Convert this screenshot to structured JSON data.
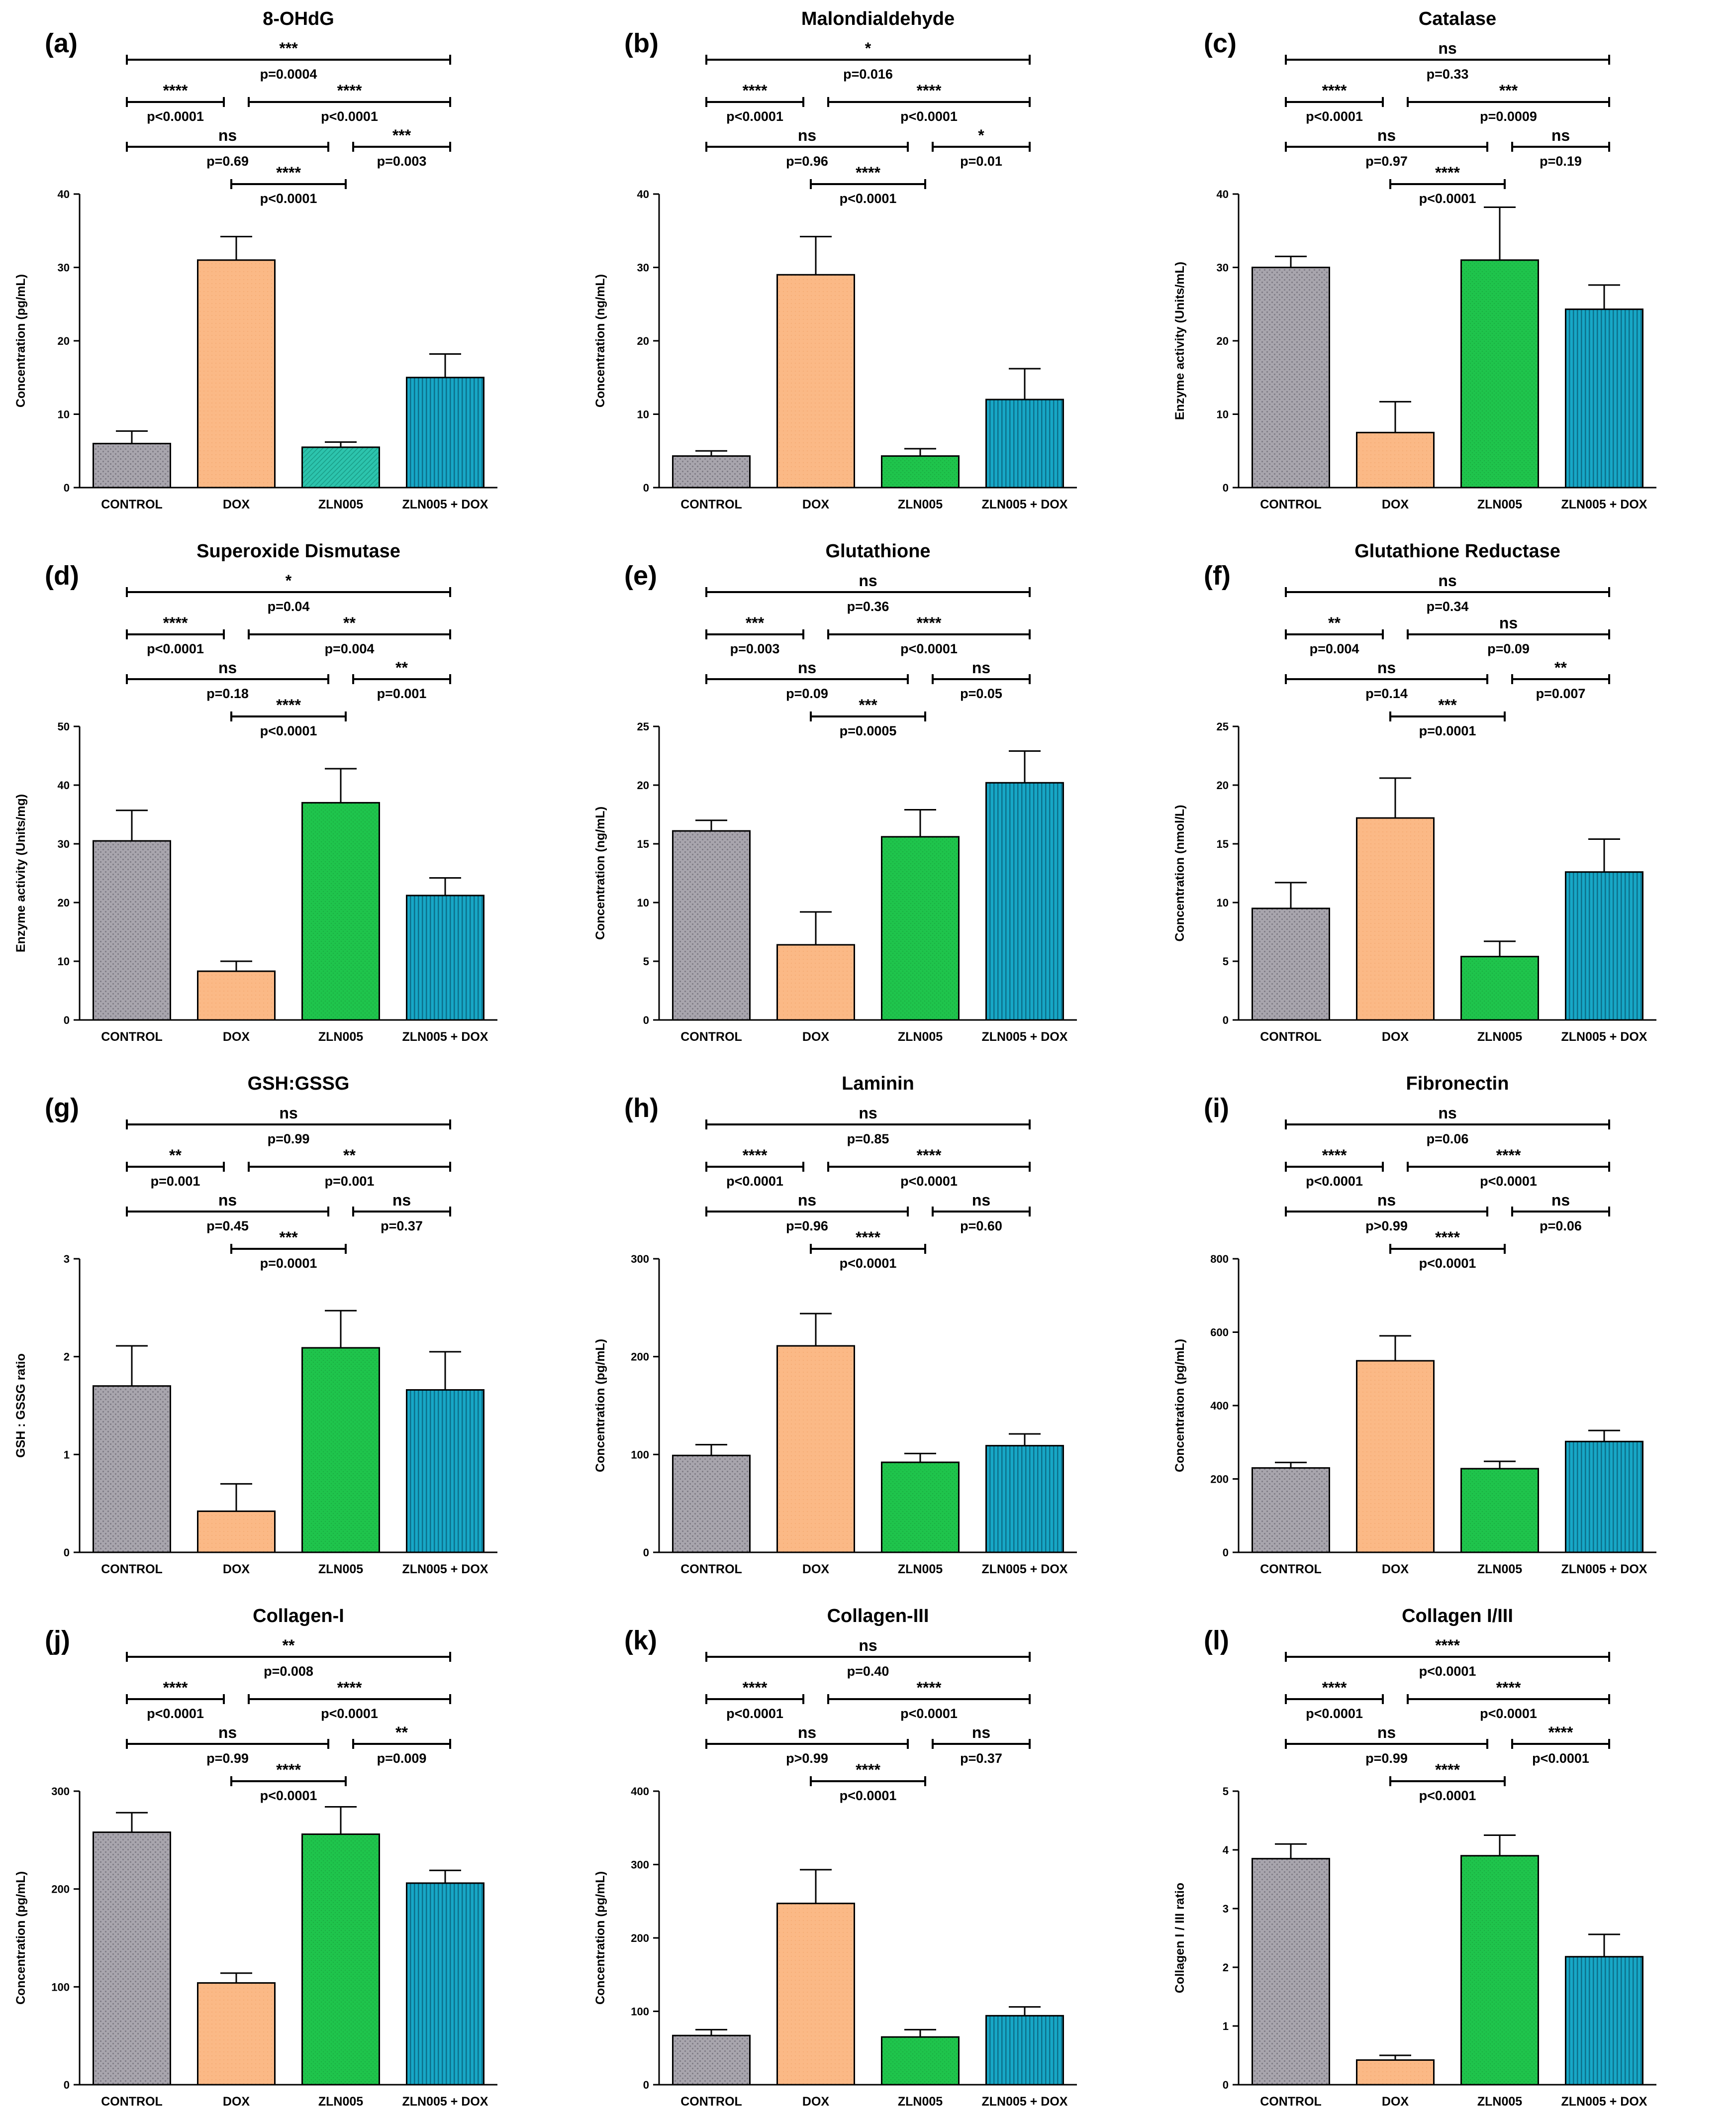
{
  "categories": [
    "CONTROL",
    "DOX",
    "ZLN005",
    "ZLN005 + DOX"
  ],
  "colors": {
    "control": "#a19ea6",
    "dox": "#fbb986",
    "zln": "#1fc44c",
    "combo": "#14a5c4",
    "zln_alt": "#25c4a8"
  },
  "chart_data": [
    {
      "label": "(a)",
      "type": "bar",
      "title": "8-OHdG",
      "ylabel": "Concentration (pg/mL)",
      "ylim": [
        0,
        40
      ],
      "yticks": [
        0,
        10,
        20,
        30,
        40
      ],
      "categories": [
        "CONTROL",
        "DOX",
        "ZLN005",
        "ZLN005 + DOX"
      ],
      "values": [
        6,
        31,
        5.5,
        15
      ],
      "errors": [
        1.7,
        3.2,
        0.7,
        3.2
      ],
      "comparisons": [
        {
          "a": 0,
          "b": 3,
          "stars": "***",
          "p": "p=0.0004"
        },
        {
          "a": 0,
          "b": 1,
          "stars": "****",
          "p": "p<0.0001"
        },
        {
          "a": 1,
          "b": 3,
          "stars": "****",
          "p": "p<0.0001"
        },
        {
          "a": 0,
          "b": 2,
          "stars": "ns",
          "p": "p=0.69"
        },
        {
          "a": 2,
          "b": 3,
          "stars": "***",
          "p": "p=0.003"
        },
        {
          "a": 1,
          "b": 2,
          "stars": "****",
          "p": "p<0.0001"
        }
      ]
    },
    {
      "label": "(b)",
      "type": "bar",
      "title": "Malondialdehyde",
      "ylabel": "Concentration (ng/mL)",
      "ylim": [
        0,
        40
      ],
      "yticks": [
        0,
        10,
        20,
        30,
        40
      ],
      "categories": [
        "CONTROL",
        "DOX",
        "ZLN005",
        "ZLN005 + DOX"
      ],
      "values": [
        4.3,
        29,
        4.3,
        12
      ],
      "errors": [
        0.7,
        5.2,
        1.0,
        4.2
      ],
      "comparisons": [
        {
          "a": 0,
          "b": 3,
          "stars": "*",
          "p": "p=0.016"
        },
        {
          "a": 0,
          "b": 1,
          "stars": "****",
          "p": "p<0.0001"
        },
        {
          "a": 1,
          "b": 3,
          "stars": "****",
          "p": "p<0.0001"
        },
        {
          "a": 0,
          "b": 2,
          "stars": "ns",
          "p": "p=0.96"
        },
        {
          "a": 2,
          "b": 3,
          "stars": "*",
          "p": "p=0.01"
        },
        {
          "a": 1,
          "b": 2,
          "stars": "****",
          "p": "p<0.0001"
        }
      ]
    },
    {
      "label": "(c)",
      "type": "bar",
      "title": "Catalase",
      "ylabel": "Enzyme activity (Units/mL)",
      "ylim": [
        0,
        40
      ],
      "yticks": [
        0,
        10,
        20,
        30,
        40
      ],
      "categories": [
        "CONTROL",
        "DOX",
        "ZLN005",
        "ZLN005 + DOX"
      ],
      "values": [
        30,
        7.5,
        31,
        24.3
      ],
      "errors": [
        1.5,
        4.2,
        7.2,
        3.3
      ],
      "comparisons": [
        {
          "a": 0,
          "b": 3,
          "stars": "ns",
          "p": "p=0.33"
        },
        {
          "a": 0,
          "b": 1,
          "stars": "****",
          "p": "p<0.0001"
        },
        {
          "a": 1,
          "b": 3,
          "stars": "***",
          "p": "p=0.0009"
        },
        {
          "a": 0,
          "b": 2,
          "stars": "ns",
          "p": "p=0.97"
        },
        {
          "a": 2,
          "b": 3,
          "stars": "ns",
          "p": "p=0.19"
        },
        {
          "a": 1,
          "b": 2,
          "stars": "****",
          "p": "p<0.0001"
        }
      ]
    },
    {
      "label": "(d)",
      "type": "bar",
      "title": "Superoxide Dismutase",
      "ylabel": "Enzyme activity (Units/mg)",
      "ylim": [
        0,
        50
      ],
      "yticks": [
        0,
        10,
        20,
        30,
        40,
        50
      ],
      "categories": [
        "CONTROL",
        "DOX",
        "ZLN005",
        "ZLN005 + DOX"
      ],
      "values": [
        30.5,
        8.3,
        37,
        21.2
      ],
      "errors": [
        5.2,
        1.7,
        5.8,
        3.0
      ],
      "comparisons": [
        {
          "a": 0,
          "b": 3,
          "stars": "*",
          "p": "p=0.04"
        },
        {
          "a": 0,
          "b": 1,
          "stars": "****",
          "p": "p<0.0001"
        },
        {
          "a": 1,
          "b": 3,
          "stars": "**",
          "p": "p=0.004"
        },
        {
          "a": 0,
          "b": 2,
          "stars": "ns",
          "p": "p=0.18"
        },
        {
          "a": 2,
          "b": 3,
          "stars": "**",
          "p": "p=0.001"
        },
        {
          "a": 1,
          "b": 2,
          "stars": "****",
          "p": "p<0.0001"
        }
      ]
    },
    {
      "label": "(e)",
      "type": "bar",
      "title": "Glutathione",
      "ylabel": "Concentration (ng/mL)",
      "ylim": [
        0,
        25
      ],
      "yticks": [
        0,
        5,
        10,
        15,
        20,
        25
      ],
      "categories": [
        "CONTROL",
        "DOX",
        "ZLN005",
        "ZLN005 + DOX"
      ],
      "values": [
        16.1,
        6.4,
        15.6,
        20.2
      ],
      "errors": [
        0.9,
        2.8,
        2.3,
        2.7
      ],
      "comparisons": [
        {
          "a": 0,
          "b": 3,
          "stars": "ns",
          "p": "p=0.36"
        },
        {
          "a": 0,
          "b": 1,
          "stars": "***",
          "p": "p=0.003"
        },
        {
          "a": 1,
          "b": 3,
          "stars": "****",
          "p": "p<0.0001"
        },
        {
          "a": 0,
          "b": 2,
          "stars": "ns",
          "p": "p=0.09"
        },
        {
          "a": 2,
          "b": 3,
          "stars": "ns",
          "p": "p=0.05"
        },
        {
          "a": 1,
          "b": 2,
          "stars": "***",
          "p": "p=0.0005"
        }
      ]
    },
    {
      "label": "(f)",
      "type": "bar",
      "title": "Glutathione Reductase",
      "ylabel": "Concentration (nmol/L)",
      "ylim": [
        0,
        25
      ],
      "yticks": [
        0,
        5,
        10,
        15,
        20,
        25
      ],
      "categories": [
        "CONTROL",
        "DOX",
        "ZLN005",
        "ZLN005 + DOX"
      ],
      "values": [
        9.5,
        17.2,
        5.4,
        12.6
      ],
      "errors": [
        2.2,
        3.4,
        1.3,
        2.8
      ],
      "comparisons": [
        {
          "a": 0,
          "b": 3,
          "stars": "ns",
          "p": "p=0.34"
        },
        {
          "a": 0,
          "b": 1,
          "stars": "**",
          "p": "p=0.004"
        },
        {
          "a": 1,
          "b": 3,
          "stars": "ns",
          "p": "p=0.09"
        },
        {
          "a": 0,
          "b": 2,
          "stars": "ns",
          "p": "p=0.14"
        },
        {
          "a": 2,
          "b": 3,
          "stars": "**",
          "p": "p=0.007"
        },
        {
          "a": 1,
          "b": 2,
          "stars": "***",
          "p": "p=0.0001"
        }
      ]
    },
    {
      "label": "(g)",
      "type": "bar",
      "title": "GSH:GSSG",
      "ylabel": "GSH : GSSG ratio",
      "ylim": [
        0,
        3
      ],
      "yticks": [
        0,
        1,
        2,
        3
      ],
      "categories": [
        "CONTROL",
        "DOX",
        "ZLN005",
        "ZLN005 + DOX"
      ],
      "values": [
        1.7,
        0.42,
        2.09,
        1.66
      ],
      "errors": [
        0.41,
        0.28,
        0.38,
        0.39
      ],
      "comparisons": [
        {
          "a": 0,
          "b": 3,
          "stars": "ns",
          "p": "p=0.99"
        },
        {
          "a": 0,
          "b": 1,
          "stars": "**",
          "p": "p=0.001"
        },
        {
          "a": 1,
          "b": 3,
          "stars": "**",
          "p": "p=0.001"
        },
        {
          "a": 0,
          "b": 2,
          "stars": "ns",
          "p": "p=0.45"
        },
        {
          "a": 2,
          "b": 3,
          "stars": "ns",
          "p": "p=0.37"
        },
        {
          "a": 1,
          "b": 2,
          "stars": "***",
          "p": "p=0.0001"
        }
      ]
    },
    {
      "label": "(h)",
      "type": "bar",
      "title": "Laminin",
      "ylabel": "Concentration (pg/mL)",
      "ylim": [
        0,
        300
      ],
      "yticks": [
        0,
        100,
        200,
        300
      ],
      "categories": [
        "CONTROL",
        "DOX",
        "ZLN005",
        "ZLN005 + DOX"
      ],
      "values": [
        99,
        211,
        92,
        109
      ],
      "errors": [
        11,
        33,
        9,
        12
      ],
      "comparisons": [
        {
          "a": 0,
          "b": 3,
          "stars": "ns",
          "p": "p=0.85"
        },
        {
          "a": 0,
          "b": 1,
          "stars": "****",
          "p": "p<0.0001"
        },
        {
          "a": 1,
          "b": 3,
          "stars": "****",
          "p": "p<0.0001"
        },
        {
          "a": 0,
          "b": 2,
          "stars": "ns",
          "p": "p=0.96"
        },
        {
          "a": 2,
          "b": 3,
          "stars": "ns",
          "p": "p=0.60"
        },
        {
          "a": 1,
          "b": 2,
          "stars": "****",
          "p": "p<0.0001"
        }
      ]
    },
    {
      "label": "(i)",
      "type": "bar",
      "title": "Fibronectin",
      "ylabel": "Concentration (pg/mL)",
      "ylim": [
        0,
        800
      ],
      "yticks": [
        0,
        200,
        400,
        600,
        800
      ],
      "categories": [
        "CONTROL",
        "DOX",
        "ZLN005",
        "ZLN005 + DOX"
      ],
      "values": [
        230,
        522,
        228,
        302
      ],
      "errors": [
        15,
        68,
        20,
        30
      ],
      "comparisons": [
        {
          "a": 0,
          "b": 3,
          "stars": "ns",
          "p": "p=0.06"
        },
        {
          "a": 0,
          "b": 1,
          "stars": "****",
          "p": "p<0.0001"
        },
        {
          "a": 1,
          "b": 3,
          "stars": "****",
          "p": "p<0.0001"
        },
        {
          "a": 0,
          "b": 2,
          "stars": "ns",
          "p": "p>0.99"
        },
        {
          "a": 2,
          "b": 3,
          "stars": "ns",
          "p": "p=0.06"
        },
        {
          "a": 1,
          "b": 2,
          "stars": "****",
          "p": "p<0.0001"
        }
      ]
    },
    {
      "label": "(j)",
      "type": "bar",
      "title": "Collagen-I",
      "ylabel": "Concentration (pg/mL)",
      "ylim": [
        0,
        300
      ],
      "yticks": [
        0,
        100,
        200,
        300
      ],
      "categories": [
        "CONTROL",
        "DOX",
        "ZLN005",
        "ZLN005 + DOX"
      ],
      "values": [
        258,
        104,
        256,
        206
      ],
      "errors": [
        20,
        10,
        28,
        13
      ],
      "comparisons": [
        {
          "a": 0,
          "b": 3,
          "stars": "**",
          "p": "p=0.008"
        },
        {
          "a": 0,
          "b": 1,
          "stars": "****",
          "p": "p<0.0001"
        },
        {
          "a": 1,
          "b": 3,
          "stars": "****",
          "p": "p<0.0001"
        },
        {
          "a": 0,
          "b": 2,
          "stars": "ns",
          "p": "p=0.99"
        },
        {
          "a": 2,
          "b": 3,
          "stars": "**",
          "p": "p=0.009"
        },
        {
          "a": 1,
          "b": 2,
          "stars": "****",
          "p": "p<0.0001"
        }
      ]
    },
    {
      "label": "(k)",
      "type": "bar",
      "title": "Collagen-III",
      "ylabel": "Concentration (pg/mL)",
      "ylim": [
        0,
        400
      ],
      "yticks": [
        0,
        100,
        200,
        300,
        400
      ],
      "categories": [
        "CONTROL",
        "DOX",
        "ZLN005",
        "ZLN005 + DOX"
      ],
      "values": [
        67,
        247,
        65,
        94
      ],
      "errors": [
        8,
        46,
        10,
        12
      ],
      "comparisons": [
        {
          "a": 0,
          "b": 3,
          "stars": "ns",
          "p": "p=0.40"
        },
        {
          "a": 0,
          "b": 1,
          "stars": "****",
          "p": "p<0.0001"
        },
        {
          "a": 1,
          "b": 3,
          "stars": "****",
          "p": "p<0.0001"
        },
        {
          "a": 0,
          "b": 2,
          "stars": "ns",
          "p": "p>0.99"
        },
        {
          "a": 2,
          "b": 3,
          "stars": "ns",
          "p": "p=0.37"
        },
        {
          "a": 1,
          "b": 2,
          "stars": "****",
          "p": "p<0.0001"
        }
      ]
    },
    {
      "label": "(l)",
      "type": "bar",
      "title": "Collagen I/III",
      "ylabel": "Collagen I / III ratio",
      "ylim": [
        0,
        5
      ],
      "yticks": [
        0,
        1,
        2,
        3,
        4,
        5
      ],
      "categories": [
        "CONTROL",
        "DOX",
        "ZLN005",
        "ZLN005 + DOX"
      ],
      "values": [
        3.85,
        0.42,
        3.9,
        2.18
      ],
      "errors": [
        0.25,
        0.08,
        0.35,
        0.38
      ],
      "comparisons": [
        {
          "a": 0,
          "b": 3,
          "stars": "****",
          "p": "p<0.0001"
        },
        {
          "a": 0,
          "b": 1,
          "stars": "****",
          "p": "p<0.0001"
        },
        {
          "a": 1,
          "b": 3,
          "stars": "****",
          "p": "p<0.0001"
        },
        {
          "a": 0,
          "b": 2,
          "stars": "ns",
          "p": "p=0.99"
        },
        {
          "a": 2,
          "b": 3,
          "stars": "****",
          "p": "p<0.0001"
        },
        {
          "a": 1,
          "b": 2,
          "stars": "****",
          "p": "p<0.0001"
        }
      ]
    }
  ]
}
